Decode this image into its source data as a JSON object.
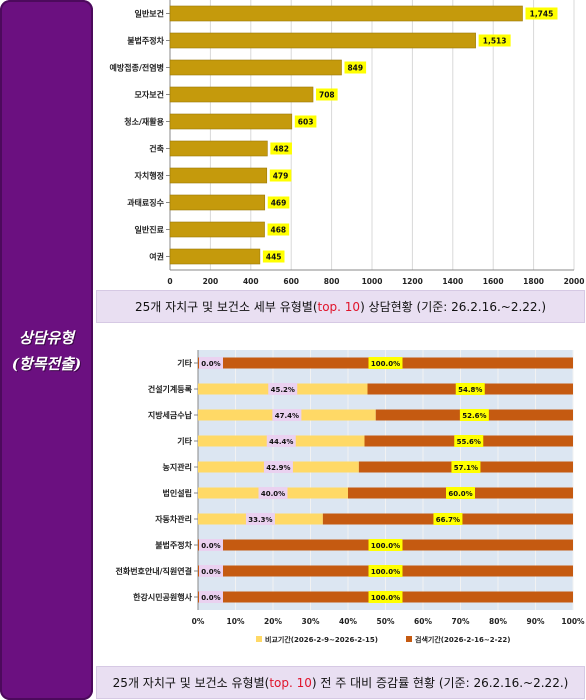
{
  "sidebar": {
    "line1": "상담유형",
    "line2": "(항목전출)"
  },
  "chart_data": [
    {
      "type": "bar",
      "orientation": "horizontal",
      "categories": [
        "일반보건",
        "불법주정차",
        "예방접종/전염병",
        "모자보건",
        "청소/재활용",
        "건축",
        "자치행정",
        "과태료징수",
        "일반진료",
        "여권"
      ],
      "values": [
        1745,
        1513,
        849,
        708,
        603,
        482,
        479,
        469,
        468,
        445
      ],
      "value_labels": [
        "1,745",
        "1,513",
        "849",
        "708",
        "603",
        "482",
        "479",
        "469",
        "468",
        "445"
      ],
      "xlim": [
        0,
        2000
      ],
      "xticks": [
        "0",
        "200",
        "400",
        "600",
        "800",
        "1000",
        "1200",
        "1400",
        "1600",
        "1800",
        "2000"
      ],
      "colors": {
        "bar": "#c59a0c",
        "label_bg": "#ffff00"
      },
      "caption": {
        "pre": "25개 자치구 및 보건소 세부 유형별(",
        "hl": "top. 10",
        ")": "",
        "post": ") 상담현황  (기준: 26.2.16.~2.22.)"
      }
    },
    {
      "type": "bar",
      "orientation": "horizontal",
      "stacked": "percent",
      "categories": [
        "기타",
        "건설기계등록",
        "지방세금수납",
        "기타",
        "농지관리",
        "법인설립",
        "자동차관리",
        "불법주정차",
        "전화번호안내/직원연결",
        "한강시민공원행사"
      ],
      "series": [
        {
          "name": "비교기간(2026-2-9~2026-2-15)",
          "values": [
            0.0,
            45.2,
            47.4,
            44.4,
            42.9,
            40.0,
            33.3,
            0.0,
            0.0,
            0.0
          ],
          "labels": [
            "0.0%",
            "45.2%",
            "47.4%",
            "44.4%",
            "42.9%",
            "40.0%",
            "33.3%",
            "0.0%",
            "0.0%",
            "0.0%"
          ]
        },
        {
          "name": "검색기간(2026-2-16~2-22)",
          "values": [
            100.0,
            54.8,
            52.6,
            55.6,
            57.1,
            60.0,
            66.7,
            100.0,
            100.0,
            100.0
          ],
          "labels": [
            "100.0%",
            "54.8%",
            "52.6%",
            "55.6%",
            "57.1%",
            "60.0%",
            "66.7%",
            "100.0%",
            "100.0%",
            "100.0%"
          ]
        }
      ],
      "xlim": [
        0,
        100
      ],
      "xticks": [
        "0%",
        "10%",
        "20%",
        "30%",
        "40%",
        "50%",
        "60%",
        "70%",
        "80%",
        "90%",
        "100%"
      ],
      "legend_position": "bottom",
      "colors": {
        "series1": "#ffd966",
        "series2": "#c55a11",
        "plot_bg": "#dce6f2",
        "label1_bg": "#ead1f0",
        "label2_bg": "#ffff00"
      },
      "caption": {
        "pre": "25개 자치구 및 보건소 유형별(",
        "hl": "top. 10",
        "post": ") 전 주 대비 증감률 현황 (기준: 26.2.16.~2.22.)"
      }
    }
  ]
}
